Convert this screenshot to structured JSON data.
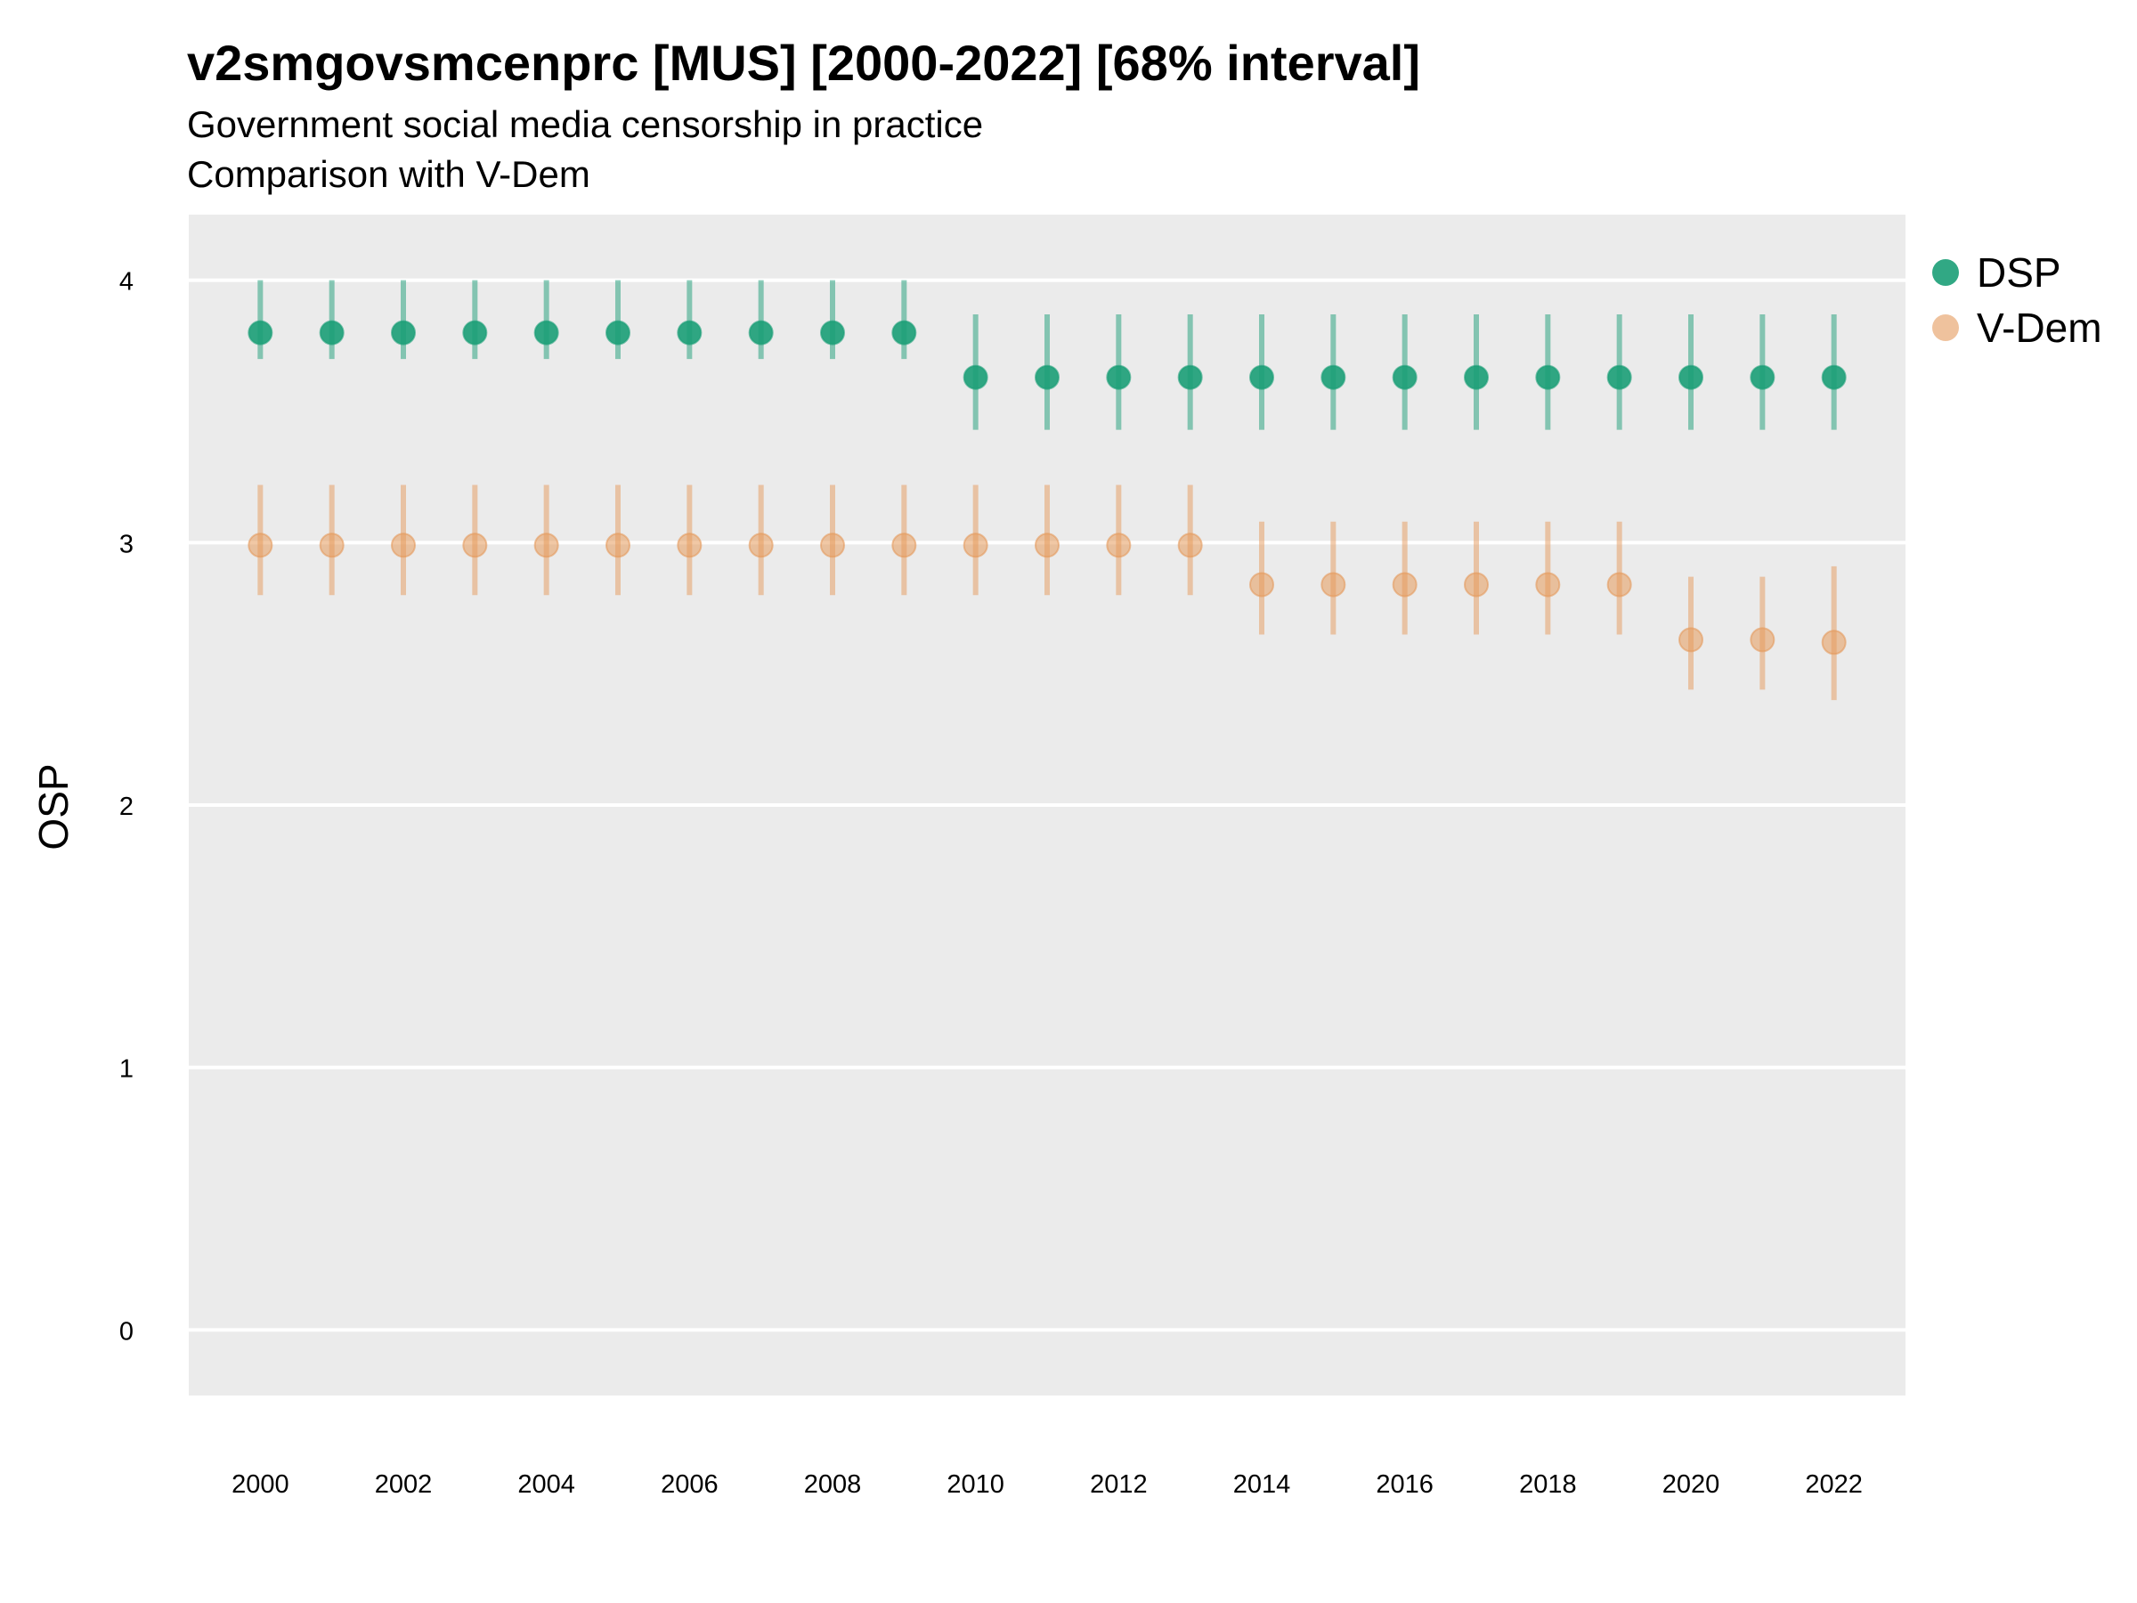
{
  "title": "v2smgovsmcenprc [MUS] [2000-2022] [68% interval]",
  "subtitle": "Government social media censorship in practice",
  "subtitle2": "Comparison with V-Dem",
  "chart_data": {
    "type": "scatter",
    "title": "v2smgovsmcenprc [MUS] [2000-2022] [68% interval]",
    "subtitle": "Government social media censorship in practice",
    "xlabel": "",
    "ylabel": "OSP",
    "ylim": [
      -0.25,
      4.25
    ],
    "xlim": [
      1999,
      2023
    ],
    "yticks": [
      0,
      1,
      2,
      3,
      4
    ],
    "xticks": [
      2000,
      2002,
      2004,
      2006,
      2008,
      2010,
      2012,
      2014,
      2016,
      2018,
      2020,
      2022
    ],
    "grid": true,
    "legend_position": "right",
    "x": [
      2000,
      2001,
      2002,
      2003,
      2004,
      2005,
      2006,
      2007,
      2008,
      2009,
      2010,
      2011,
      2012,
      2013,
      2014,
      2015,
      2016,
      2017,
      2018,
      2019,
      2020,
      2021,
      2022
    ],
    "series": [
      {
        "name": "DSP",
        "color": "#1b9e77",
        "values": [
          3.8,
          3.8,
          3.8,
          3.8,
          3.8,
          3.8,
          3.8,
          3.8,
          3.8,
          3.8,
          3.63,
          3.63,
          3.63,
          3.63,
          3.63,
          3.63,
          3.63,
          3.63,
          3.63,
          3.63,
          3.63,
          3.63,
          3.63
        ],
        "lower": [
          3.7,
          3.7,
          3.7,
          3.7,
          3.7,
          3.7,
          3.7,
          3.7,
          3.7,
          3.7,
          3.43,
          3.43,
          3.43,
          3.43,
          3.43,
          3.43,
          3.43,
          3.43,
          3.43,
          3.43,
          3.43,
          3.43,
          3.43
        ],
        "upper": [
          4.0,
          4.0,
          4.0,
          4.0,
          4.0,
          4.0,
          4.0,
          4.0,
          4.0,
          4.0,
          3.87,
          3.87,
          3.87,
          3.87,
          3.87,
          3.87,
          3.87,
          3.87,
          3.87,
          3.87,
          3.87,
          3.87,
          3.87
        ]
      },
      {
        "name": "V-Dem",
        "color": "#e59a5b",
        "values": [
          2.99,
          2.99,
          2.99,
          2.99,
          2.99,
          2.99,
          2.99,
          2.99,
          2.99,
          2.99,
          2.99,
          2.99,
          2.99,
          2.99,
          2.84,
          2.84,
          2.84,
          2.84,
          2.84,
          2.84,
          2.63,
          2.63,
          2.62
        ],
        "lower": [
          2.8,
          2.8,
          2.8,
          2.8,
          2.8,
          2.8,
          2.8,
          2.8,
          2.8,
          2.8,
          2.8,
          2.8,
          2.8,
          2.8,
          2.65,
          2.65,
          2.65,
          2.65,
          2.65,
          2.65,
          2.44,
          2.44,
          2.4
        ],
        "upper": [
          3.22,
          3.22,
          3.22,
          3.22,
          3.22,
          3.22,
          3.22,
          3.22,
          3.22,
          3.22,
          3.22,
          3.22,
          3.22,
          3.22,
          3.08,
          3.08,
          3.08,
          3.08,
          3.08,
          3.08,
          2.87,
          2.87,
          2.91
        ]
      }
    ]
  }
}
